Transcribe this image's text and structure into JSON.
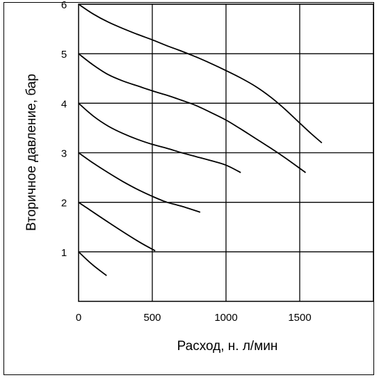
{
  "chart_data": {
    "type": "line",
    "xlabel": "Расход, н. л/мин",
    "ylabel": "Вторичное давление, бар",
    "xlim": [
      0,
      2000
    ],
    "ylim": [
      0,
      6
    ],
    "xticks": [
      0,
      500,
      1000,
      1500
    ],
    "xtick_labels": [
      "0",
      "500",
      "1000",
      "1500"
    ],
    "yticks": [
      1,
      2,
      3,
      4,
      5,
      6
    ],
    "ytick_labels": [
      "1",
      "2",
      "3",
      "4",
      "5",
      "6"
    ],
    "grid": true,
    "legend": "none",
    "series": [
      {
        "x": [
          0,
          90,
          190
        ],
        "y": [
          1.0,
          0.75,
          0.52
        ]
      },
      {
        "x": [
          0,
          200,
          400,
          520
        ],
        "y": [
          2.0,
          1.6,
          1.22,
          1.02
        ]
      },
      {
        "x": [
          0,
          100,
          200,
          300,
          400,
          500,
          600,
          700,
          825
        ],
        "y": [
          3.0,
          2.79,
          2.6,
          2.42,
          2.26,
          2.12,
          2.0,
          1.92,
          1.8
        ]
      },
      {
        "x": [
          0,
          100,
          200,
          300,
          400,
          500,
          600,
          700,
          800,
          900,
          1000,
          1100
        ],
        "y": [
          4.0,
          3.74,
          3.54,
          3.39,
          3.27,
          3.17,
          3.09,
          3.0,
          2.92,
          2.84,
          2.75,
          2.6
        ]
      },
      {
        "x": [
          0,
          100,
          200,
          300,
          400,
          500,
          600,
          700,
          800,
          900,
          1000,
          1100,
          1200,
          1300,
          1400,
          1540
        ],
        "y": [
          5.0,
          4.77,
          4.58,
          4.45,
          4.35,
          4.25,
          4.16,
          4.06,
          3.95,
          3.81,
          3.66,
          3.48,
          3.29,
          3.1,
          2.9,
          2.6
        ]
      },
      {
        "x": [
          0,
          100,
          200,
          300,
          400,
          500,
          600,
          700,
          800,
          900,
          1000,
          1100,
          1200,
          1300,
          1400,
          1500,
          1580,
          1650
        ],
        "y": [
          6.0,
          5.8,
          5.64,
          5.51,
          5.39,
          5.28,
          5.16,
          5.05,
          4.93,
          4.8,
          4.66,
          4.51,
          4.34,
          4.13,
          3.88,
          3.6,
          3.38,
          3.2
        ]
      }
    ]
  }
}
